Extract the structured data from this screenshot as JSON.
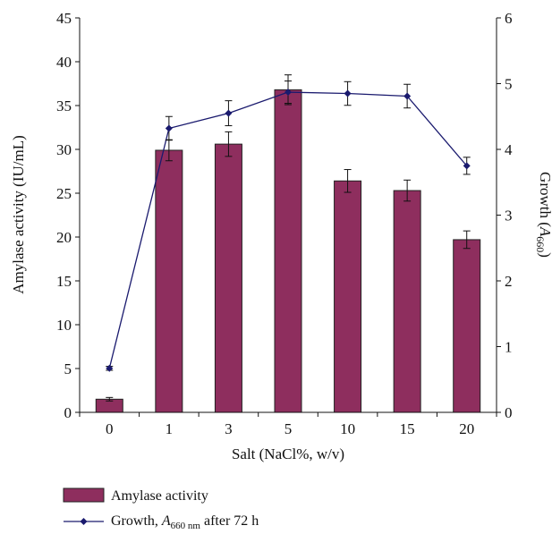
{
  "chart_data": {
    "type": "bar",
    "categories": [
      "0",
      "1",
      "3",
      "5",
      "10",
      "15",
      "20"
    ],
    "xlabel": "Salt (NaCl%, w/v)",
    "y_left": {
      "label": "Amylase activity (IU/mL)",
      "ylim": [
        0,
        45
      ],
      "ticks": [
        "0",
        "5",
        "10",
        "15",
        "20",
        "25",
        "30",
        "35",
        "40",
        "45"
      ]
    },
    "y_right": {
      "label_prefix": "Growth (",
      "label_var": "A",
      "label_sub": "660",
      "label_suffix": ")",
      "ylim": [
        0,
        6
      ],
      "ticks": [
        "0",
        "1",
        "2",
        "3",
        "4",
        "5",
        "6"
      ]
    },
    "series": [
      {
        "name": "Amylase activity",
        "kind": "bar",
        "axis": "left",
        "color": "#8e2e5e",
        "values": [
          1.5,
          29.9,
          30.6,
          36.8,
          26.4,
          25.3,
          19.7
        ],
        "errors": [
          0.2,
          1.2,
          1.4,
          1.7,
          1.3,
          1.2,
          1.0
        ]
      },
      {
        "name": "Growth",
        "kind": "line",
        "axis": "right",
        "color": "#1a1a6e",
        "values": [
          0.67,
          4.32,
          4.55,
          4.87,
          4.85,
          4.81,
          3.75
        ],
        "errors": [
          0.03,
          0.18,
          0.19,
          0.17,
          0.18,
          0.18,
          0.13
        ]
      }
    ],
    "legend": {
      "position": "bottom",
      "bar_label": "Amylase activity",
      "line_label_prefix": "Growth, ",
      "line_label_var": "A",
      "line_label_sub": "660 nm",
      "line_label_suffix": " after 72 h"
    }
  }
}
